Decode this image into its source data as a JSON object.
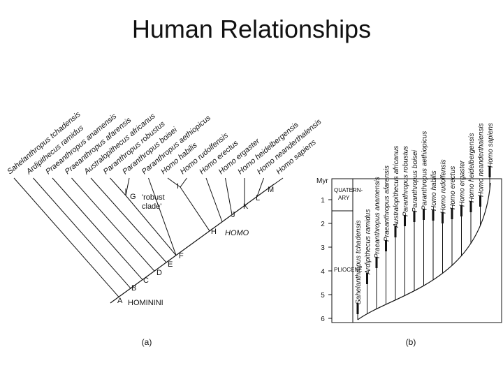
{
  "title": "Human Relationships",
  "panel_a": {
    "species": [
      "Sahelanthropus tchadensis",
      "Ardipithecus ramidus",
      "Praeanthropus anamensis",
      "Praeanthropus afarensis",
      "Australopithecus africanus",
      "Paranthropus robustus",
      "Paranthropus boisei",
      "Paranthropus aethiopicus",
      "Homo habilis",
      "Homo rudolfensis",
      "Homo erectus",
      "Homo ergaster",
      "Homo heidelbergensis",
      "Homo neanderthalensis",
      "Homo sapiens"
    ],
    "nodes": [
      "A",
      "B",
      "C",
      "D",
      "E",
      "F",
      "G",
      "H",
      "I",
      "J",
      "K",
      "L",
      "M"
    ],
    "hominini": "HOMININI",
    "robust_clade": [
      "'robust",
      "clade'"
    ],
    "homo": "HOMO",
    "caption": "(a)"
  },
  "panel_b": {
    "axis": {
      "label": "Myr",
      "ticks": [
        1,
        2,
        3,
        4,
        5,
        6
      ]
    },
    "epochs": [
      [
        "QUATERN-",
        "ARY"
      ],
      [
        "PLIOCENE"
      ]
    ],
    "species": [
      "Sahelanthropus tchadensis",
      "Ardipithecus ramidus",
      "Praeanthropus anamensis",
      "Praeanthropus afarensis",
      "Australopithecus africanus",
      "Paranthropus robustus",
      "Paranthropus boisei",
      "Paranthropus aethiopicus",
      "Homo habilis",
      "Homo rudolfensis",
      "Homo erectus",
      "Homo ergaster",
      "Homo heidelbergensis",
      "Homo neanderthalensis",
      "Homo sapiens"
    ],
    "caption": "(b)"
  }
}
